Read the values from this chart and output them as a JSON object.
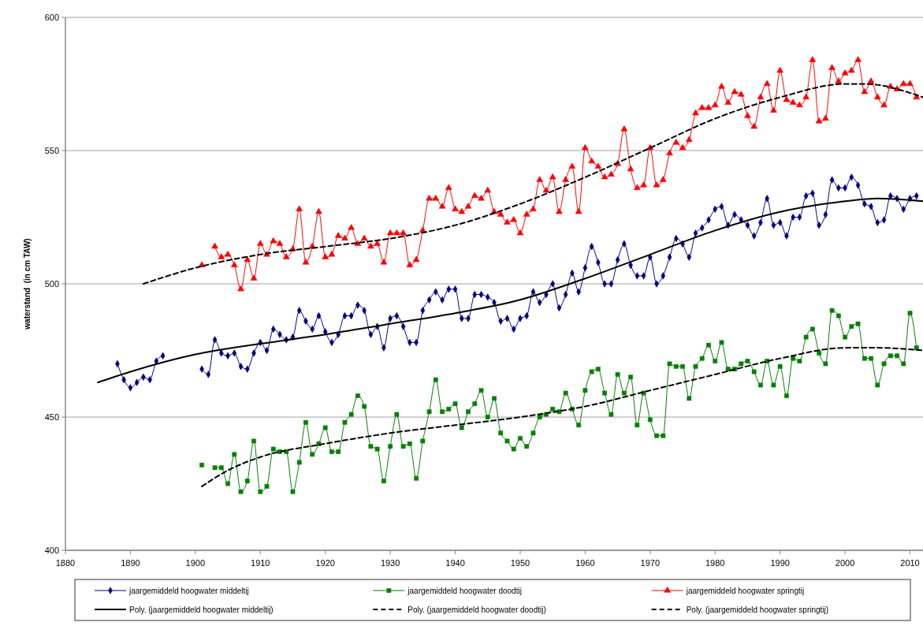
{
  "chart_data": {
    "type": "line",
    "ylabel": "waterstand  (in cm TAW)",
    "xlim": [
      1880,
      2012
    ],
    "xticks": [
      1880,
      1890,
      1900,
      1910,
      1920,
      1930,
      1940,
      1950,
      1960,
      1970,
      1980,
      1990,
      2000,
      2010
    ],
    "ylim": [
      400,
      600
    ],
    "yticks": [
      400,
      450,
      500,
      550,
      600
    ],
    "grid": "y",
    "legend": "bottom",
    "series": [
      {
        "name": "jaargemiddeld hoogwater middeltij",
        "color": "#000080",
        "marker": "diamond",
        "line_style": "solid",
        "x": [
          1888,
          1889,
          1890,
          1891,
          1892,
          1893,
          1894,
          1895,
          null,
          1901,
          1902,
          1903,
          1904,
          1905,
          1906,
          1907,
          1908,
          1909,
          1910,
          1911,
          1912,
          1913,
          1914,
          1915,
          1916,
          1917,
          1918,
          1919,
          1920,
          1921,
          1922,
          1923,
          1924,
          1925,
          1926,
          1927,
          1928,
          1929,
          1930,
          1931,
          1932,
          1933,
          1934,
          1935,
          1936,
          1937,
          1938,
          1939,
          1940,
          1941,
          1942,
          1943,
          1944,
          1945,
          1946,
          1947,
          1948,
          1949,
          1950,
          1951,
          1952,
          1953,
          1954,
          1955,
          1956,
          1957,
          1958,
          1959,
          1960,
          1961,
          1962,
          1963,
          1964,
          1965,
          1966,
          1967,
          1968,
          1969,
          1970,
          1971,
          1972,
          1973,
          1974,
          1975,
          1976,
          1977,
          1978,
          1979,
          1980,
          1981,
          1982,
          1983,
          1984,
          1985,
          1986,
          1987,
          1988,
          1989,
          1990,
          1991,
          1992,
          1993,
          1994,
          1995,
          1996,
          1997,
          1998,
          1999,
          2000,
          2001,
          2002,
          2003,
          2004,
          2005,
          2006,
          2007,
          2008,
          2009,
          2010,
          2011
        ],
        "values": [
          470,
          464,
          461,
          463,
          465,
          464,
          471,
          473,
          null,
          468,
          466,
          479,
          474,
          473,
          474,
          469,
          468,
          474,
          478,
          475,
          483,
          481,
          479,
          480,
          490,
          486,
          483,
          488,
          482,
          478,
          481,
          488,
          488,
          492,
          490,
          481,
          484,
          476,
          487,
          488,
          484,
          478,
          478,
          490,
          494,
          497,
          494,
          498,
          498,
          487,
          487,
          496,
          496,
          495,
          493,
          486,
          487,
          483,
          487,
          488,
          497,
          493,
          496,
          500,
          491,
          496,
          504,
          497,
          506,
          514,
          508,
          500,
          500,
          509,
          515,
          507,
          503,
          503,
          510,
          500,
          503,
          510,
          517,
          515,
          510,
          519,
          521,
          524,
          528,
          529,
          522,
          526,
          524,
          522,
          518,
          523,
          532,
          522,
          523,
          518,
          525,
          525,
          533,
          534,
          522,
          526,
          539,
          536,
          536,
          540,
          537,
          530,
          529,
          523,
          524,
          533,
          532,
          528,
          532,
          533
        ]
      },
      {
        "name": "jaargemiddeld hoogwater doodtij",
        "color": "#008000",
        "marker": "square",
        "line_style": "solid",
        "x": [
          1901,
          1902,
          1903,
          1904,
          1905,
          1906,
          1907,
          1908,
          1909,
          1910,
          1911,
          1912,
          1913,
          1914,
          1915,
          1916,
          1917,
          1918,
          1919,
          1920,
          1921,
          1922,
          1923,
          1924,
          1925,
          1926,
          1927,
          1928,
          1929,
          1930,
          1931,
          1932,
          1933,
          1934,
          1935,
          1936,
          1937,
          1938,
          1939,
          1940,
          1941,
          1942,
          1943,
          1944,
          1945,
          1946,
          1947,
          1948,
          1949,
          1950,
          1951,
          1952,
          1953,
          1954,
          1955,
          1956,
          1957,
          1958,
          1959,
          1960,
          1961,
          1962,
          1963,
          1964,
          1965,
          1966,
          1967,
          1968,
          1969,
          1970,
          1971,
          1972,
          1973,
          1974,
          1975,
          1976,
          1977,
          1978,
          1979,
          1980,
          1981,
          1982,
          1983,
          1984,
          1985,
          1986,
          1987,
          1988,
          1989,
          1990,
          1991,
          1992,
          1993,
          1994,
          1995,
          1996,
          1997,
          1998,
          1999,
          2000,
          2001,
          2002,
          2003,
          2004,
          2005,
          2006,
          2007,
          2008,
          2009,
          2010,
          2011
        ],
        "values": [
          432,
          null,
          431,
          431,
          425,
          436,
          422,
          426,
          441,
          422,
          424,
          438,
          437,
          437,
          422,
          433,
          448,
          436,
          440,
          446,
          437,
          437,
          448,
          451,
          458,
          454,
          439,
          438,
          426,
          439,
          451,
          439,
          440,
          427,
          441,
          452,
          464,
          452,
          453,
          455,
          446,
          452,
          455,
          460,
          450,
          457,
          444,
          441,
          438,
          442,
          439,
          444,
          450,
          451,
          453,
          452,
          459,
          453,
          447,
          460,
          467,
          468,
          459,
          451,
          466,
          459,
          465,
          447,
          459,
          449,
          443,
          443,
          470,
          469,
          469,
          457,
          469,
          472,
          477,
          471,
          478,
          468,
          468,
          470,
          471,
          467,
          462,
          471,
          462,
          469,
          458,
          472,
          471,
          480,
          483,
          474,
          470,
          490,
          488,
          480,
          484,
          485,
          472,
          472,
          462,
          470,
          473,
          473,
          470,
          489,
          476
        ]
      },
      {
        "name": "jaargemiddeld hoogwater springtij",
        "color": "#ff0000",
        "marker": "triangle",
        "line_style": "solid",
        "x": [
          1901,
          1902,
          1903,
          1904,
          1905,
          1906,
          1907,
          1908,
          1909,
          1910,
          1911,
          1912,
          1913,
          1914,
          1915,
          1916,
          1917,
          1918,
          1919,
          1920,
          1921,
          1922,
          1923,
          1924,
          1925,
          1926,
          1927,
          1928,
          1929,
          1930,
          1931,
          1932,
          1933,
          1934,
          1935,
          1936,
          1937,
          1938,
          1939,
          1940,
          1941,
          1942,
          1943,
          1944,
          1945,
          1946,
          1947,
          1948,
          1949,
          1950,
          1951,
          1952,
          1953,
          1954,
          1955,
          1956,
          1957,
          1958,
          1959,
          1960,
          1961,
          1962,
          1963,
          1964,
          1965,
          1966,
          1967,
          1968,
          1969,
          1970,
          1971,
          1972,
          1973,
          1974,
          1975,
          1976,
          1977,
          1978,
          1979,
          1980,
          1981,
          1982,
          1983,
          1984,
          1985,
          1986,
          1987,
          1988,
          1989,
          1990,
          1991,
          1992,
          1993,
          1994,
          1995,
          1996,
          1997,
          1998,
          1999,
          2000,
          2001,
          2002,
          2003,
          2004,
          2005,
          2006,
          2007,
          2008,
          2009,
          2010,
          2011
        ],
        "values": [
          507,
          null,
          514,
          510,
          511,
          507,
          498,
          509,
          502,
          515,
          511,
          516,
          515,
          510,
          513,
          528,
          508,
          514,
          527,
          510,
          511,
          518,
          517,
          521,
          515,
          517,
          514,
          515,
          508,
          519,
          519,
          519,
          507,
          509,
          520,
          532,
          532,
          529,
          536,
          528,
          527,
          529,
          533,
          532,
          535,
          527,
          526,
          523,
          524,
          519,
          526,
          528,
          539,
          535,
          540,
          527,
          539,
          544,
          527,
          551,
          546,
          544,
          540,
          541,
          545,
          558,
          543,
          536,
          537,
          551,
          537,
          539,
          549,
          553,
          551,
          554,
          564,
          566,
          566,
          567,
          574,
          568,
          572,
          571,
          563,
          559,
          570,
          575,
          565,
          580,
          569,
          568,
          567,
          570,
          584,
          561,
          562,
          581,
          576,
          579,
          580,
          584,
          572,
          576,
          570,
          567,
          574,
          573,
          575,
          575,
          570
        ]
      },
      {
        "name": "Poly. (jaargemiddeld hoogwater middeltij)",
        "color": "#000000",
        "marker": "none",
        "line_style": "solid",
        "x": [
          1885,
          1890,
          1900,
          1910,
          1920,
          1930,
          1940,
          1950,
          1960,
          1970,
          1980,
          1990,
          2000,
          2005,
          2012
        ],
        "values": [
          463,
          467,
          473.5,
          477.5,
          481,
          485,
          489,
          494,
          502,
          511,
          520,
          527,
          531,
          532,
          531
        ]
      },
      {
        "name": "Poly. (jaargemiddeld hoogwater doodtij)",
        "color": "#000000",
        "marker": "none",
        "line_style": "dashed",
        "x": [
          1901,
          1905,
          1910,
          1920,
          1930,
          1940,
          1950,
          1960,
          1970,
          1980,
          1990,
          2000,
          2005,
          2012
        ],
        "values": [
          424,
          430,
          435,
          440,
          444,
          447,
          450,
          454,
          460,
          466,
          472,
          476,
          476,
          475
        ]
      },
      {
        "name": "Poly. (jaargemiddeld hoogwater springtij)",
        "color": "#000000",
        "marker": "none",
        "line_style": "dashed",
        "x": [
          1892,
          1900,
          1910,
          1920,
          1930,
          1940,
          1950,
          1960,
          1970,
          1980,
          1990,
          2000,
          2003,
          2012
        ],
        "values": [
          500,
          506,
          511,
          514,
          517,
          522,
          530,
          540,
          551,
          562,
          570,
          575,
          575,
          570
        ]
      }
    ]
  }
}
